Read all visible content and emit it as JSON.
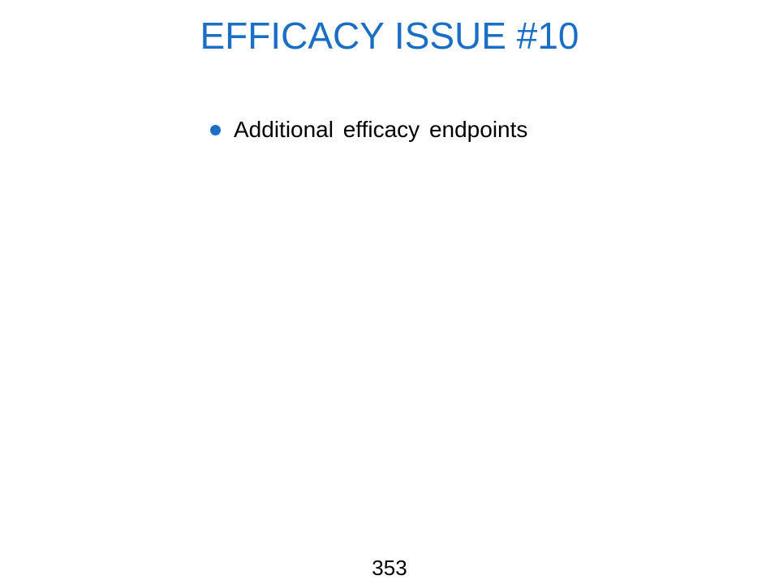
{
  "slide": {
    "title": "EFFICACY ISSUE #10",
    "bullets": [
      {
        "text": "Additional efficacy endpoints"
      }
    ],
    "page_number": "353"
  },
  "colors": {
    "title": "#1a6fc4",
    "bullet": "#1a6fc4",
    "body_text": "#000000",
    "background": "#ffffff"
  },
  "icons": {
    "bullet": "round-bullet-icon"
  }
}
